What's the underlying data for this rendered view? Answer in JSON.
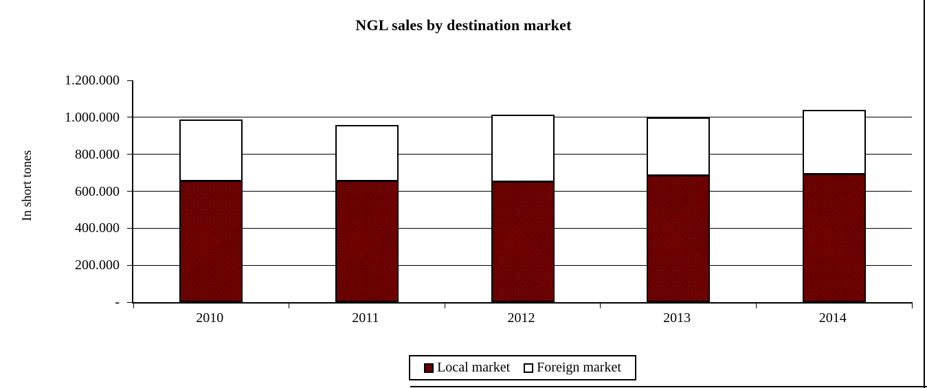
{
  "chart_data": {
    "type": "bar",
    "stacked": true,
    "title": "NGL sales by destination market",
    "xlabel": "",
    "ylabel": "In short tones",
    "categories": [
      "2010",
      "2011",
      "2012",
      "2013",
      "2014"
    ],
    "series": [
      {
        "name": "Local market",
        "color": "#8B0000",
        "values": [
          655000,
          655000,
          650000,
          685000,
          690000
        ]
      },
      {
        "name": "Foreign market",
        "color": "#FFFFFF",
        "values": [
          335000,
          305000,
          365000,
          315000,
          350000
        ]
      }
    ],
    "totals": [
      990000,
      960000,
      1015000,
      1000000,
      1040000
    ],
    "ylim": [
      0,
      1200000
    ],
    "ytick_step": 200000,
    "ytick_labels": [
      "-",
      "200.000",
      "400.000",
      "600.000",
      "800.000",
      "1.000.000",
      "1.200.000"
    ],
    "grid": true,
    "legend_position": "bottom",
    "number_format": "thousands-dot"
  },
  "colors": {
    "bar_local": "#8B0000",
    "bar_foreign": "#FFFFFF",
    "axis": "#000000",
    "background": "#FFFFFF",
    "frame": "#000000"
  }
}
